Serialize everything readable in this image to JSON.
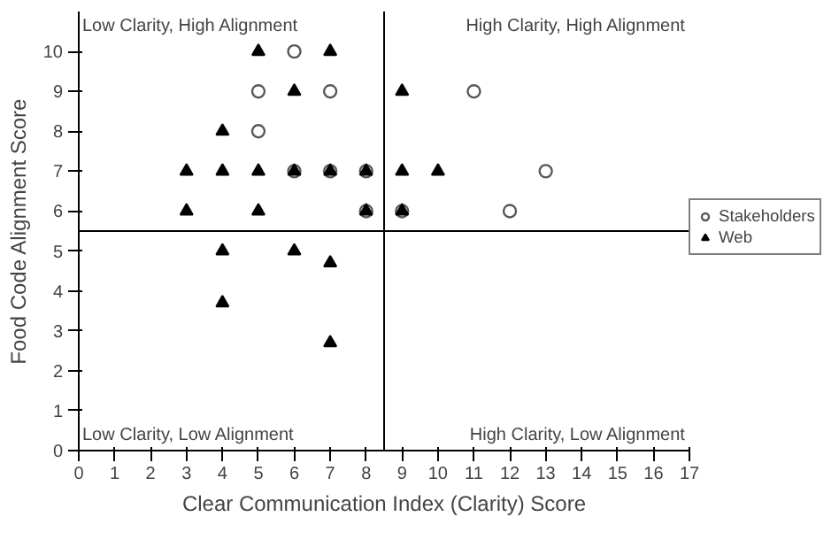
{
  "chart_data": {
    "type": "scatter",
    "xlabel": "Clear Communication Index (Clarity) Score",
    "ylabel": "Food Code Alignment Score",
    "xlim": [
      0,
      17
    ],
    "ylim": [
      0,
      11
    ],
    "xticks": [
      0,
      1,
      2,
      3,
      4,
      5,
      6,
      7,
      8,
      9,
      10,
      11,
      12,
      13,
      14,
      15,
      16,
      17
    ],
    "yticks": [
      0,
      1,
      2,
      3,
      4,
      5,
      6,
      7,
      8,
      9,
      10
    ],
    "grid": false,
    "legend": "right",
    "series": [
      {
        "name": "Stakeholders",
        "color": "#595959",
        "marker": "circle",
        "x": [
          6,
          5,
          7,
          5,
          6,
          7,
          8,
          8,
          9,
          11,
          13,
          12
        ],
        "values": [
          10,
          9,
          9,
          8,
          7,
          7,
          7,
          6,
          6,
          9,
          7,
          6
        ]
      },
      {
        "name": "Web",
        "color": "#000000",
        "marker": "triangle",
        "x": [
          5,
          7,
          6,
          9,
          4,
          3,
          4,
          5,
          6,
          7,
          8,
          9,
          10,
          3,
          5,
          8,
          9,
          4,
          6,
          7,
          4,
          7
        ],
        "values": [
          10,
          10,
          9,
          9,
          8,
          7,
          7,
          7,
          7,
          7,
          7,
          7,
          7,
          6,
          6,
          6,
          6,
          5,
          5,
          4.7,
          3.7,
          2.7
        ]
      }
    ],
    "ref_lines": [
      {
        "axis": "x",
        "value": 8.5,
        "color": "#000000"
      },
      {
        "axis": "y",
        "value": 5.5,
        "color": "#000000"
      }
    ],
    "annotations": [
      "Low Clarity, High Alignment",
      "High Clarity, High Alignment",
      "Low Clarity, Low Alignment",
      "High Clarity, Low Alignment"
    ]
  }
}
